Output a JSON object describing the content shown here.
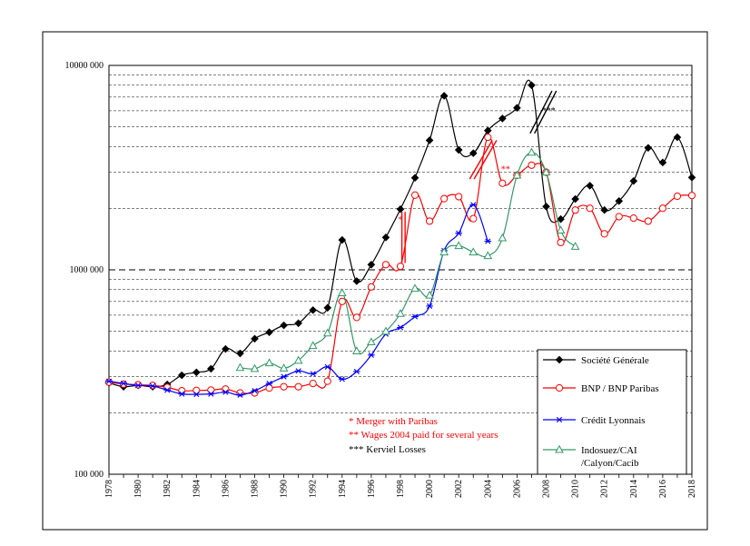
{
  "chart_data": {
    "type": "line",
    "y_scale": "log",
    "ylim": [
      100000,
      10000000
    ],
    "xlim": [
      1978,
      2018
    ],
    "y_ticks": [
      {
        "value": 100000,
        "label": "100 000"
      },
      {
        "value": 1000000,
        "label": "1000 000"
      },
      {
        "value": 10000000,
        "label": "10000 000"
      }
    ],
    "x_ticks": [
      "1978",
      "1980",
      "1982",
      "1984",
      "1986",
      "1988",
      "1990",
      "1992",
      "1994",
      "1996",
      "1998",
      "2000",
      "2002",
      "2004",
      "2006",
      "2008",
      "2010",
      "2012",
      "2014",
      "2016",
      "2018"
    ],
    "grid": "horizontal, dashed",
    "legend_placement": "bottom-right",
    "colors": {
      "societe_generale": "#000000",
      "bnp": "#ff0000",
      "credit_lyonnais": "#0000ff",
      "indosuez": "#339966",
      "notes_red": "#ff0000",
      "notes_black": "#000000"
    },
    "series": [
      {
        "key": "sg",
        "name": "Société Générale",
        "color": "#000000",
        "marker": "diamond",
        "points": [
          [
            1978,
            280000
          ],
          [
            1979,
            268000
          ],
          [
            1980,
            272000
          ],
          [
            1981,
            268000
          ],
          [
            1982,
            275000
          ],
          [
            1983,
            305000
          ],
          [
            1984,
            315000
          ],
          [
            1985,
            328000
          ],
          [
            1986,
            410000
          ],
          [
            1987,
            390000
          ],
          [
            1988,
            460000
          ],
          [
            1989,
            495000
          ],
          [
            1990,
            535000
          ],
          [
            1991,
            548000
          ],
          [
            1992,
            635000
          ],
          [
            1993,
            652000
          ],
          [
            1994,
            1400000
          ],
          [
            1995,
            880000
          ],
          [
            1996,
            1060000
          ],
          [
            1997,
            1440000
          ],
          [
            1998,
            1980000
          ],
          [
            1999,
            2820000
          ],
          [
            2000,
            4300000
          ],
          [
            2001,
            7100000
          ],
          [
            2002,
            3860000
          ],
          [
            2003,
            3720000
          ],
          [
            2004,
            4800000
          ],
          [
            2005,
            5500000
          ],
          [
            2006,
            6200000
          ],
          [
            2007,
            8000000
          ],
          [
            2008,
            2040000
          ],
          [
            2009,
            1770000
          ],
          [
            2010,
            2220000
          ],
          [
            2011,
            2580000
          ],
          [
            2012,
            1960000
          ],
          [
            2013,
            2170000
          ],
          [
            2014,
            2720000
          ],
          [
            2015,
            3950000
          ],
          [
            2016,
            3350000
          ],
          [
            2017,
            4450000
          ],
          [
            2018,
            2830000
          ]
        ]
      },
      {
        "key": "bnp",
        "name": "BNP / BNP Paribas",
        "color": "#ff0000",
        "marker": "circle",
        "points": [
          [
            1978,
            282000
          ],
          [
            1979,
            276000
          ],
          [
            1980,
            274000
          ],
          [
            1981,
            272000
          ],
          [
            1982,
            266000
          ],
          [
            1983,
            256000
          ],
          [
            1984,
            257000
          ],
          [
            1985,
            258000
          ],
          [
            1986,
            261000
          ],
          [
            1987,
            250000
          ],
          [
            1988,
            250000
          ],
          [
            1989,
            264000
          ],
          [
            1990,
            268000
          ],
          [
            1991,
            268000
          ],
          [
            1992,
            278000
          ],
          [
            1993,
            285000
          ],
          [
            1994,
            700000
          ],
          [
            1995,
            585000
          ],
          [
            1996,
            825000
          ],
          [
            1997,
            1060000
          ],
          [
            1998,
            1040000
          ],
          [
            1999,
            2320000
          ],
          [
            2000,
            1730000
          ],
          [
            2001,
            2230000
          ],
          [
            2002,
            2280000
          ],
          [
            2003,
            1780000
          ],
          [
            2004,
            4450000
          ],
          [
            2005,
            2650000
          ],
          [
            2006,
            2900000
          ],
          [
            2007,
            3250000
          ],
          [
            2008,
            3000000
          ],
          [
            2009,
            1360000
          ],
          [
            2010,
            1960000
          ],
          [
            2011,
            2000000
          ],
          [
            2012,
            1500000
          ],
          [
            2013,
            1820000
          ],
          [
            2014,
            1790000
          ],
          [
            2015,
            1730000
          ],
          [
            2016,
            2000000
          ],
          [
            2017,
            2290000
          ],
          [
            2018,
            2310000
          ]
        ]
      },
      {
        "key": "cl",
        "name": "Crédit Lyonnais",
        "color": "#0000ff",
        "marker": "asterisk",
        "points": [
          [
            1978,
            285000
          ],
          [
            1979,
            278000
          ],
          [
            1980,
            272000
          ],
          [
            1981,
            270000
          ],
          [
            1982,
            258000
          ],
          [
            1983,
            247000
          ],
          [
            1984,
            246000
          ],
          [
            1985,
            247000
          ],
          [
            1986,
            252000
          ],
          [
            1987,
            244000
          ],
          [
            1988,
            256000
          ],
          [
            1989,
            278000
          ],
          [
            1990,
            300000
          ],
          [
            1991,
            320000
          ],
          [
            1992,
            310000
          ],
          [
            1993,
            335000
          ],
          [
            1994,
            292000
          ],
          [
            1995,
            318000
          ],
          [
            1996,
            383000
          ],
          [
            1997,
            485000
          ],
          [
            1998,
            522000
          ],
          [
            1999,
            590000
          ],
          [
            2000,
            665000
          ],
          [
            2001,
            1240000
          ],
          [
            2002,
            1510000
          ],
          [
            2003,
            2080000
          ],
          [
            2004,
            1380000
          ]
        ]
      },
      {
        "key": "ind",
        "name": "Indosuez/CAI\n/Calyon/Cacib",
        "color": "#339966",
        "marker": "triangle",
        "points": [
          [
            1987,
            332000
          ],
          [
            1988,
            328000
          ],
          [
            1989,
            350000
          ],
          [
            1990,
            330000
          ],
          [
            1991,
            360000
          ],
          [
            1992,
            425000
          ],
          [
            1993,
            490000
          ],
          [
            1994,
            770000
          ],
          [
            1995,
            400000
          ],
          [
            1996,
            443000
          ],
          [
            1997,
            500000
          ],
          [
            1998,
            610000
          ],
          [
            1999,
            810000
          ],
          [
            2000,
            750000
          ],
          [
            2001,
            1220000
          ],
          [
            2002,
            1310000
          ],
          [
            2003,
            1220000
          ],
          [
            2004,
            1170000
          ],
          [
            2005,
            1430000
          ],
          [
            2006,
            2900000
          ],
          [
            2007,
            3750000
          ],
          [
            2008,
            3000000
          ],
          [
            2009,
            1560000
          ],
          [
            2010,
            1300000
          ]
        ]
      }
    ],
    "legend": [
      {
        "key": "sg",
        "label": "Société Générale"
      },
      {
        "key": "bnp",
        "label": "BNP / BNP Paribas"
      },
      {
        "key": "cl",
        "label": "Crédit Lyonnais"
      },
      {
        "key": "ind",
        "label1": "Indosuez/CAI",
        "label2": "/Calyon/Cacib"
      }
    ],
    "annotations": {
      "notes": [
        {
          "text": "* Merger with Paribas",
          "color": "#ff0000"
        },
        {
          "text": "** Wages 2004 paid for several years",
          "color": "#ff0000"
        },
        {
          "text": "*** Kerviel  Losses",
          "color": "#000000"
        }
      ],
      "marks": [
        {
          "text": "*",
          "color": "#ff0000",
          "x": 1997.85,
          "y": 1700000
        },
        {
          "text": "**",
          "color": "#ff0000",
          "x": 2004.9,
          "y": 3000000
        },
        {
          "text": "***",
          "color": "#000000",
          "x": 2007.7,
          "y": 5800000
        }
      ]
    }
  }
}
